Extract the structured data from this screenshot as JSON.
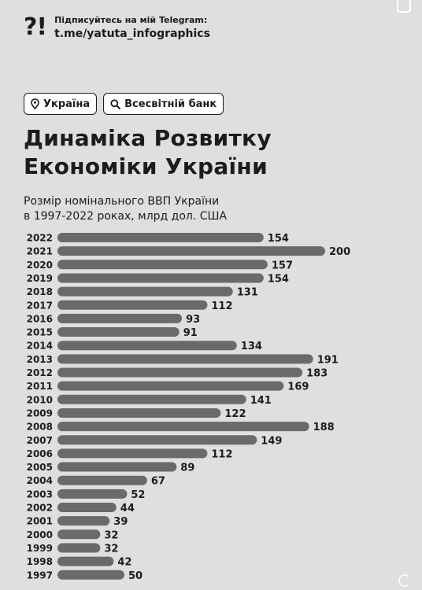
{
  "header": {
    "logo": "?!",
    "subscribe": "Підписуйтесь на мій Telegram:",
    "channel": "t.me/yatuta_infographics"
  },
  "chips": {
    "country": "Україна",
    "source": "Всесвітній банк"
  },
  "title_line1": "Динаміка Розвитку",
  "title_line2": "Економіки України",
  "subtitle_line1": "Розмір номінального ВВП України",
  "subtitle_line2": "в 1997-2022 роках, млрд дол. США",
  "colors": {
    "bar": "#6a6a6a",
    "background": "#dde0dc",
    "text": "#1c1c1c"
  },
  "icons": {
    "location": "location-pin-icon",
    "search": "search-icon"
  },
  "chart_data": {
    "type": "bar",
    "orientation": "horizontal",
    "categories": [
      "2022",
      "2021",
      "2020",
      "2019",
      "2018",
      "2017",
      "2016",
      "2015",
      "2014",
      "2013",
      "2012",
      "2011",
      "2010",
      "2009",
      "2008",
      "2007",
      "2006",
      "2005",
      "2004",
      "2003",
      "2002",
      "2001",
      "2000",
      "1999",
      "1998",
      "1997"
    ],
    "values": [
      154,
      200,
      157,
      154,
      131,
      112,
      93,
      91,
      134,
      191,
      183,
      169,
      141,
      122,
      188,
      149,
      112,
      89,
      67,
      52,
      44,
      39,
      32,
      32,
      42,
      50
    ],
    "title": "Розмір номінального ВВП України в 1997-2022 роках, млрд дол. США",
    "xlim": [
      0,
      200
    ],
    "grid": false,
    "data_labels": true
  }
}
